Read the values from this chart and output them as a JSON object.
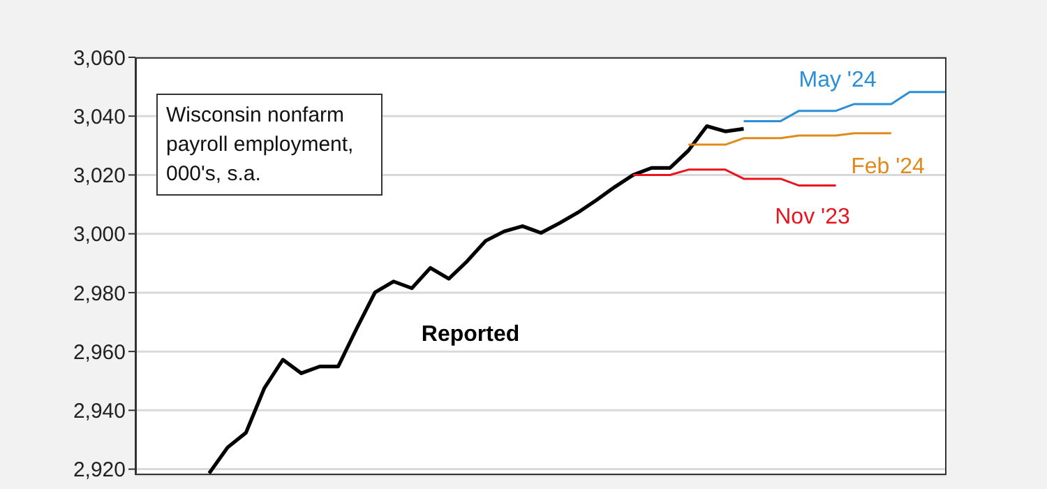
{
  "chart_data": {
    "type": "line",
    "title": "Wisconsin nonfarm payroll employment, 000's, s.a.",
    "categories": [
      null,
      null,
      null,
      null,
      null,
      null,
      null,
      null,
      null,
      null,
      null,
      null,
      null,
      null,
      null,
      null,
      null,
      null,
      null,
      null,
      null,
      null,
      null,
      null,
      null,
      null,
      null,
      null,
      null,
      null,
      null,
      null,
      null,
      null,
      null,
      null,
      null,
      null,
      null,
      null,
      null,
      null,
      null,
      null
    ],
    "series": [
      {
        "name": "Reported",
        "color": "#000000",
        "values": [
          null,
          null,
          null,
          2918.6,
          2927.4,
          2932.4,
          2947.6,
          2957.2,
          2952.6,
          2954.9,
          2954.9,
          2967.8,
          2980.1,
          2983.8,
          2981.5,
          2988.4,
          2984.7,
          2990.7,
          2997.6,
          3000.8,
          3002.6,
          3000.3,
          3003.6,
          3007.2,
          3011.4,
          3015.9,
          3020.0,
          3022.4,
          3022.4,
          3028.3,
          3036.6,
          3034.8,
          3035.7,
          null,
          null,
          null,
          null,
          null,
          null,
          null,
          null,
          null,
          null,
          null
        ]
      },
      {
        "name": "Nov '23",
        "color": "#e8141e",
        "values": [
          null,
          null,
          null,
          null,
          null,
          null,
          null,
          null,
          null,
          null,
          null,
          null,
          null,
          null,
          null,
          null,
          null,
          null,
          null,
          null,
          null,
          null,
          null,
          null,
          null,
          null,
          3020.0,
          3020.0,
          3020.0,
          3021.8,
          3021.8,
          3021.8,
          3018.7,
          3018.7,
          3018.7,
          3016.4,
          3016.4,
          3016.4,
          null,
          null,
          null,
          null,
          null,
          null
        ]
      },
      {
        "name": "Feb '24",
        "color": "#e08a1c",
        "values": [
          null,
          null,
          null,
          null,
          null,
          null,
          null,
          null,
          null,
          null,
          null,
          null,
          null,
          null,
          null,
          null,
          null,
          null,
          null,
          null,
          null,
          null,
          null,
          null,
          null,
          null,
          null,
          null,
          null,
          3030.3,
          3030.3,
          3030.3,
          3032.5,
          3032.5,
          3032.5,
          3033.4,
          3033.4,
          3033.4,
          3034.2,
          3034.2,
          3034.2,
          null,
          null,
          null
        ]
      },
      {
        "name": "May '24",
        "color": "#2a8fd6",
        "values": [
          null,
          null,
          null,
          null,
          null,
          null,
          null,
          null,
          null,
          null,
          null,
          null,
          null,
          null,
          null,
          null,
          null,
          null,
          null,
          null,
          null,
          null,
          null,
          null,
          null,
          null,
          null,
          null,
          null,
          null,
          null,
          null,
          3038.3,
          3038.3,
          3038.3,
          3041.8,
          3041.8,
          3041.8,
          3044.1,
          3044.1,
          3044.1,
          3048.2,
          3048.2,
          3048.2
        ]
      }
    ],
    "ylim": [
      2918,
      3060
    ],
    "yticks": [
      {
        "value": 2920,
        "label": "2,920"
      },
      {
        "value": 2940,
        "label": "2,940"
      },
      {
        "value": 2960,
        "label": "2,960"
      },
      {
        "value": 2980,
        "label": "2,980"
      },
      {
        "value": 3000,
        "label": "3,000"
      },
      {
        "value": 3020,
        "label": "3,020"
      },
      {
        "value": 3040,
        "label": "3,040"
      },
      {
        "value": 3060,
        "label": "3,060"
      }
    ],
    "grid": "y",
    "marker": "none",
    "line_style": "solid"
  }
}
